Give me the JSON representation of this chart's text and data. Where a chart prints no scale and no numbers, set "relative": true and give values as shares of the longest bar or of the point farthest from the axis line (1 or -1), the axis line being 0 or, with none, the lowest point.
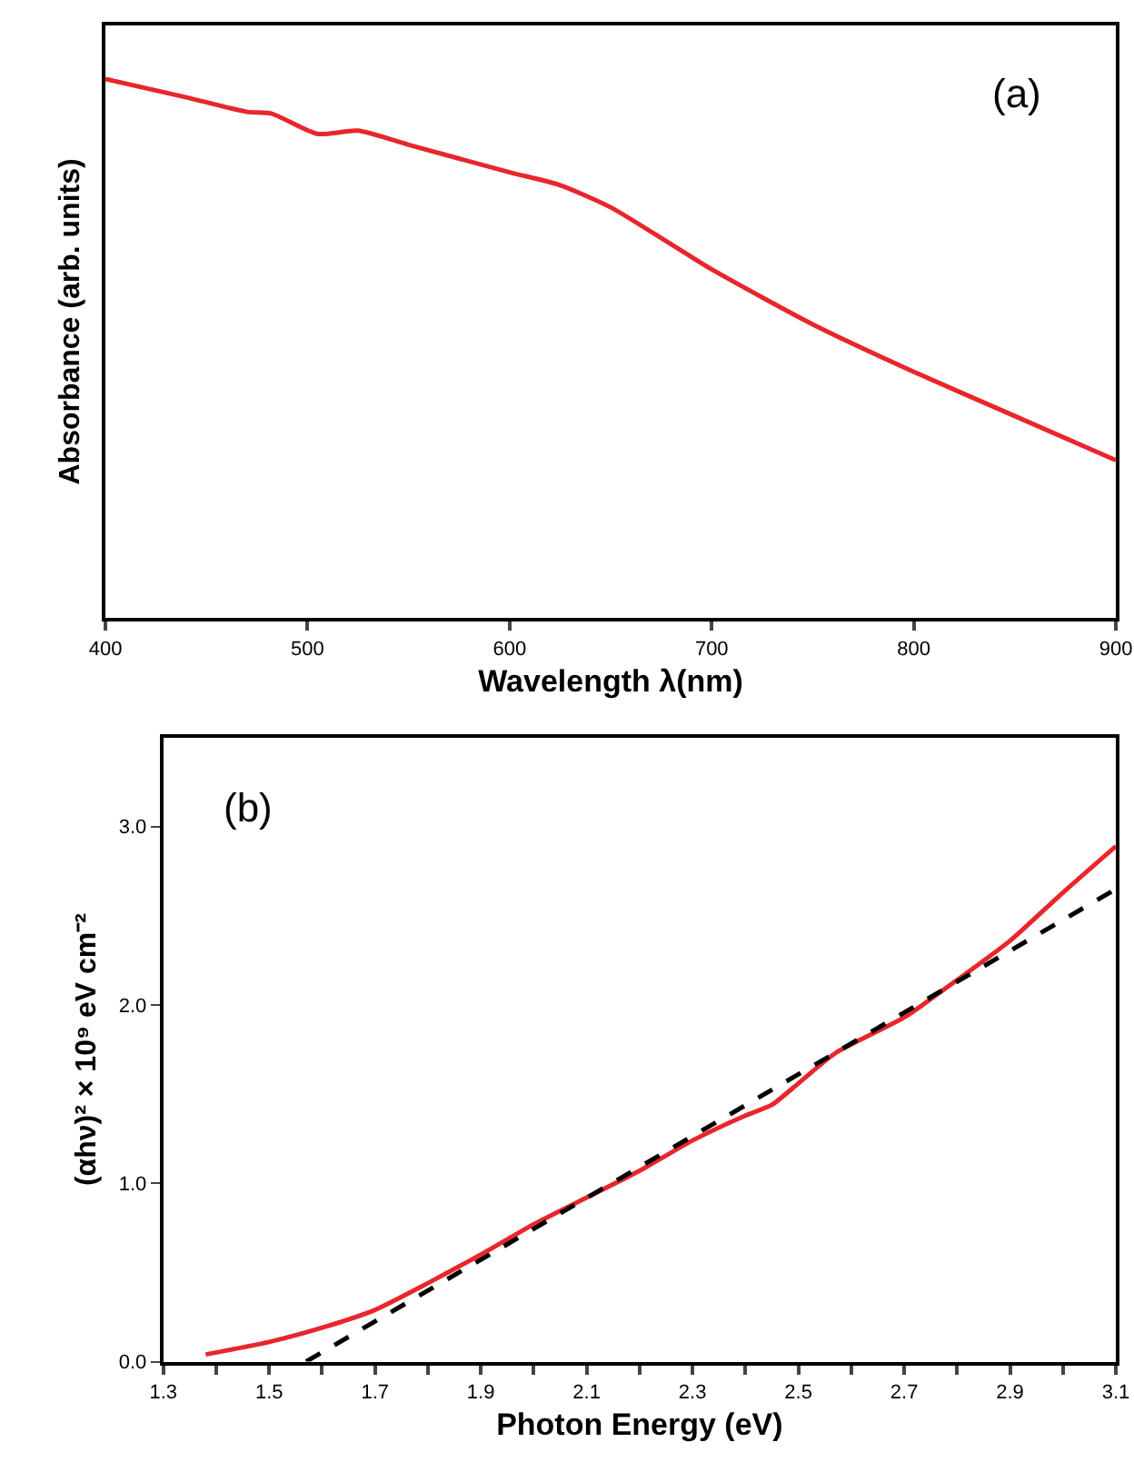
{
  "chart_data": [
    {
      "type": "line",
      "relative": true,
      "xlabel": "Wavelength λ(nm)",
      "ylabel": "Absorbance (arb. units)",
      "annotations": [
        "(a)"
      ],
      "xlim": [
        400,
        900
      ],
      "xticks": [
        400,
        500,
        600,
        700,
        800,
        900
      ],
      "tick_labels": "x",
      "x": [
        400,
        440,
        470,
        482,
        505,
        525,
        550,
        600,
        625,
        650,
        700,
        750,
        800,
        850,
        900
      ],
      "series": [
        {
          "color": "#e8262b",
          "line_style": "solid",
          "values": [
            1.0,
            0.966,
            0.939,
            0.936,
            0.898,
            0.904,
            0.878,
            0.827,
            0.803,
            0.762,
            0.647,
            0.545,
            0.457,
            0.375,
            0.293
          ]
        }
      ]
    },
    {
      "type": "line",
      "xlabel": "Photon Energy (eV)",
      "ylabel": "(αhν)² × 10⁹ eV cm⁻²",
      "annotations": [
        "(b)"
      ],
      "xlim": [
        1.3,
        3.1
      ],
      "ylim": [
        0,
        3.5
      ],
      "xticks": [
        1.3,
        {
          "value": 1.4,
          "label": null
        },
        1.5,
        {
          "value": 1.6,
          "label": null
        },
        1.7,
        {
          "value": 1.8,
          "label": null
        },
        1.9,
        {
          "value": 2.0,
          "label": null
        },
        2.1,
        {
          "value": 2.2,
          "label": null
        },
        2.3,
        {
          "value": 2.4,
          "label": null
        },
        2.5,
        {
          "value": 2.6,
          "label": null
        },
        2.7,
        {
          "value": 2.8,
          "label": null
        },
        2.9,
        {
          "value": 3.0,
          "label": null
        },
        3.1
      ],
      "yticks": [
        {
          "value": 0,
          "label": "0.0"
        },
        {
          "value": 1,
          "label": "1.0"
        },
        {
          "value": 2,
          "label": "2.0"
        },
        {
          "value": 3,
          "label": "3.0"
        }
      ],
      "series": [
        {
          "color": "#e8262b",
          "line_style": "solid",
          "x": [
            1.38,
            1.5,
            1.6,
            1.7,
            1.8,
            1.9,
            2.0,
            2.1,
            2.2,
            2.3,
            2.4,
            2.45,
            2.5,
            2.57,
            2.7,
            2.8,
            2.9,
            3.0,
            3.1
          ],
          "values": [
            0.04,
            0.11,
            0.19,
            0.29,
            0.44,
            0.6,
            0.77,
            0.92,
            1.07,
            1.24,
            1.38,
            1.44,
            1.56,
            1.73,
            1.93,
            2.14,
            2.36,
            2.63,
            2.89
          ]
        },
        {
          "color": "#000000",
          "line_style": "dashed",
          "x": [
            1.57,
            3.1
          ],
          "values": [
            0,
            2.65
          ]
        }
      ]
    }
  ]
}
